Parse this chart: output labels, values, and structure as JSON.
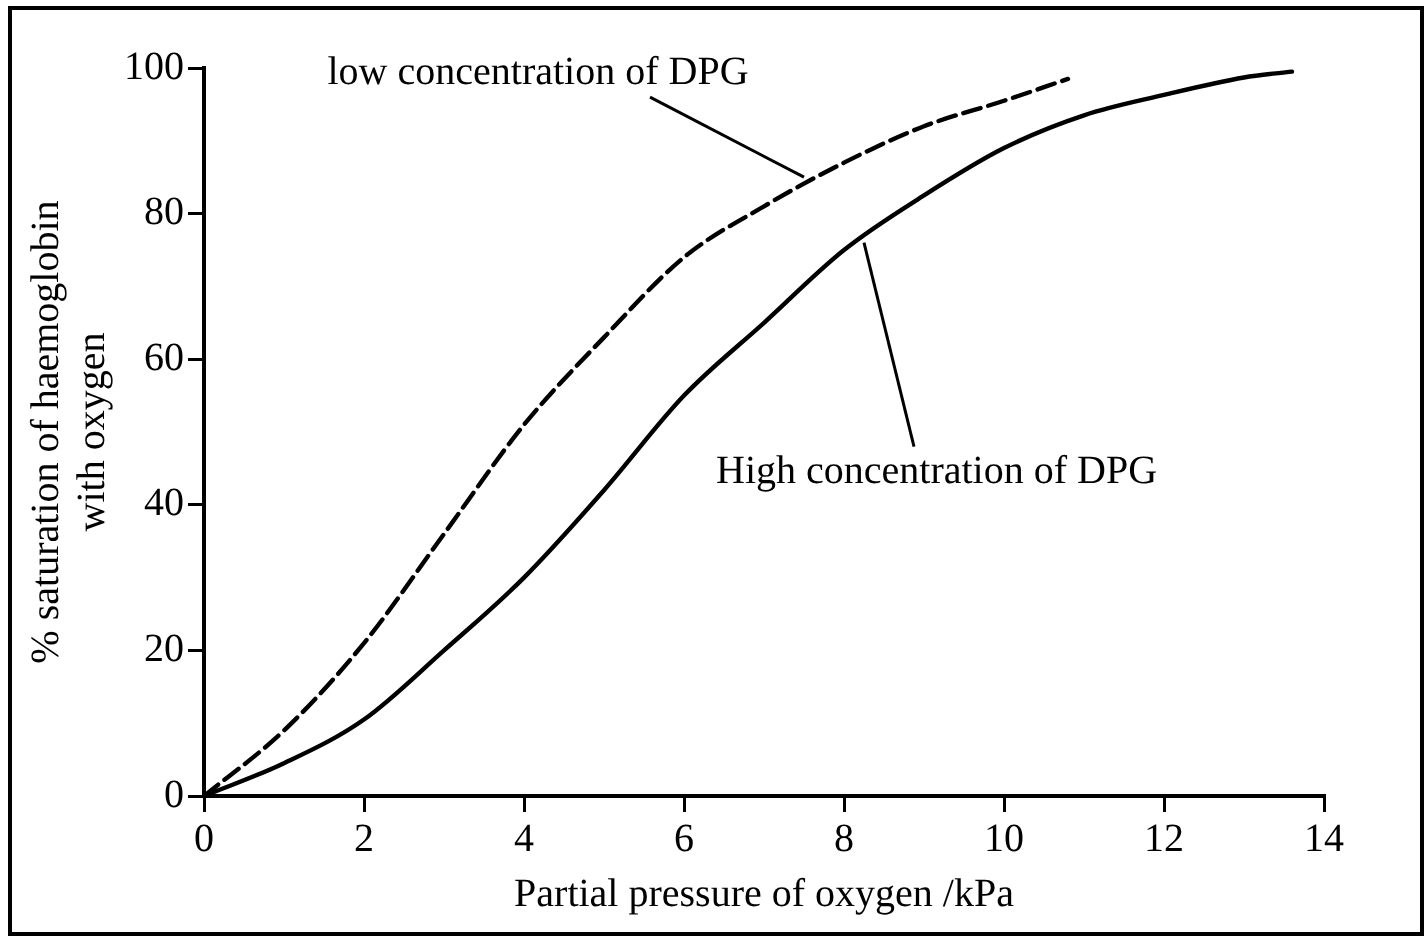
{
  "chart_data": {
    "type": "line",
    "xlabel": "Partial pressure of oxygen /kPa",
    "ylabel": "% saturation of haemoglobin\nwith oxygen",
    "xlim": [
      0,
      14
    ],
    "xticks": [
      0,
      2,
      4,
      6,
      8,
      10,
      12,
      14
    ],
    "ylim": [
      0,
      100
    ],
    "yticks": [
      0,
      20,
      40,
      60,
      80,
      100
    ],
    "grid": false,
    "legend": false,
    "marker": "none",
    "series": [
      {
        "color": "#000000",
        "line_style": "dashed",
        "x": [
          0,
          1,
          2,
          3,
          4,
          5,
          6,
          7,
          8,
          9,
          10,
          10.8
        ],
        "values": [
          0,
          9,
          21,
          36,
          51,
          63,
          74,
          81,
          87,
          92,
          95.5,
          98.5
        ]
      },
      {
        "color": "#000000",
        "line_style": "solid",
        "x": [
          0,
          1,
          2,
          3,
          4,
          5,
          6,
          7,
          8,
          9,
          10,
          11,
          12,
          13,
          13.6
        ],
        "values": [
          0,
          4.5,
          10.5,
          20,
          30,
          42,
          55,
          65,
          75,
          82.5,
          89,
          93.5,
          96.3,
          98.7,
          99.5
        ]
      }
    ],
    "annotations": [
      {
        "text": "low concentration of DPG",
        "x": 7.5,
        "y": 85
      },
      {
        "text": "High concentration of DPG",
        "x": 8.25,
        "y": 76
      }
    ]
  }
}
